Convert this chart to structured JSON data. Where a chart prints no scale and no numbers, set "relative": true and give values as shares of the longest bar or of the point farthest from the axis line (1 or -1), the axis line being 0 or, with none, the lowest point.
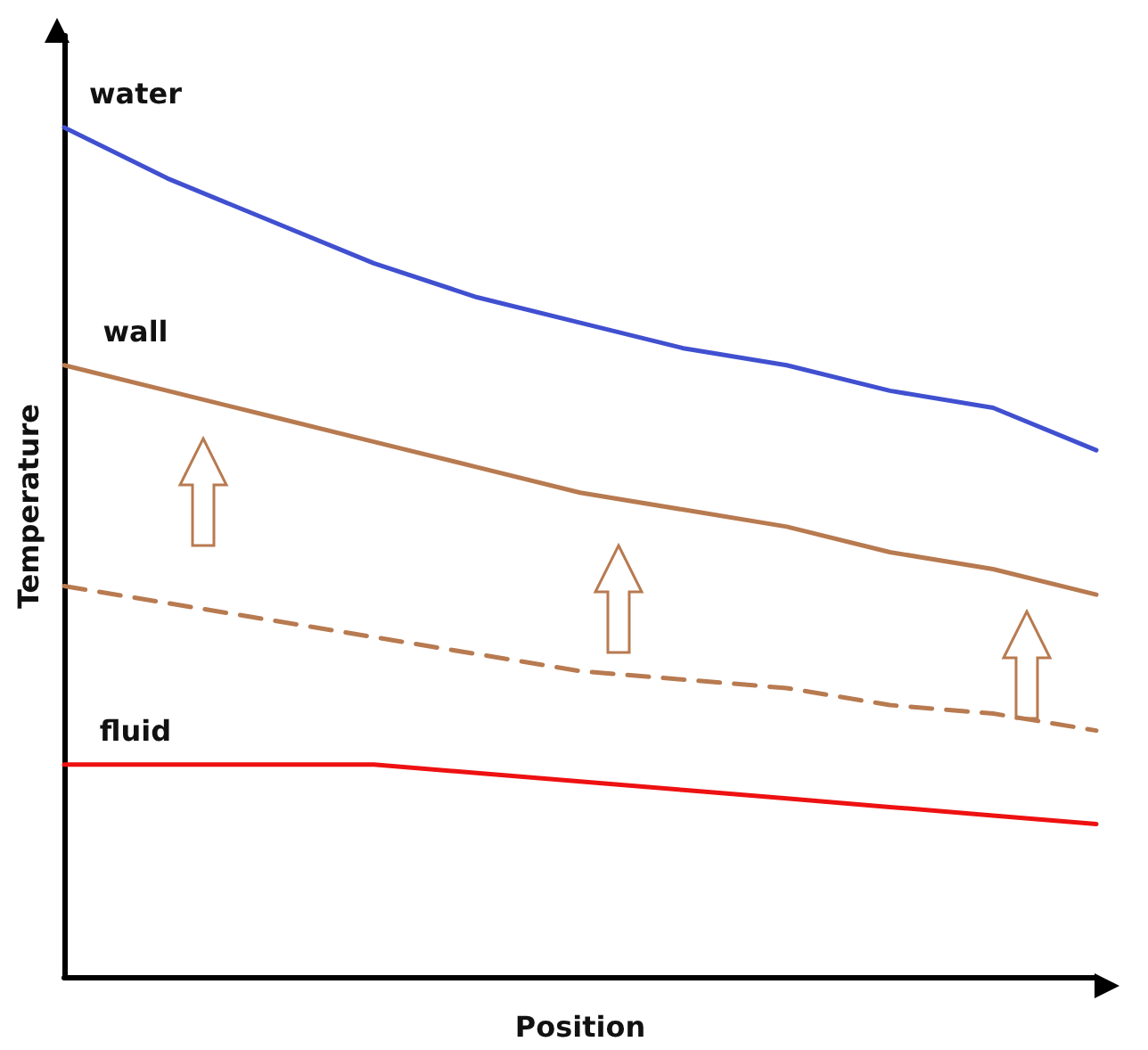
{
  "chart_data": {
    "type": "line",
    "relative": true,
    "xlabel": "Position",
    "ylabel": "Temperature",
    "marker": "none",
    "grid": false,
    "legend": false,
    "categories": [
      null,
      null,
      null,
      null,
      null,
      null,
      null,
      null,
      null,
      null,
      null
    ],
    "series": [
      {
        "name": "water",
        "color": "#4050d0",
        "line_style": "solid",
        "values": [
          1,
          0.94,
          0.89,
          0.84,
          0.8,
          0.77,
          0.74,
          0.72,
          0.69,
          0.67,
          0.62
        ]
      },
      {
        "name": "wall",
        "color": "#b87a50",
        "line_style": "solid",
        "values": [
          0.72,
          0.69,
          0.66,
          0.63,
          0.6,
          0.57,
          0.55,
          0.53,
          0.5,
          0.48,
          0.45
        ]
      },
      {
        "color": "#b87a50",
        "line_style": "dashed",
        "values": [
          0.46,
          0.44,
          0.42,
          0.4,
          0.38,
          0.36,
          0.35,
          0.34,
          0.32,
          0.31,
          0.29
        ]
      },
      {
        "name": "fluid",
        "color": "#ee1111",
        "line_style": "solid",
        "values": [
          0.25,
          0.25,
          0.25,
          0.25,
          0.24,
          0.23,
          0.22,
          0.21,
          0.2,
          0.19,
          0.18
        ]
      }
    ]
  }
}
